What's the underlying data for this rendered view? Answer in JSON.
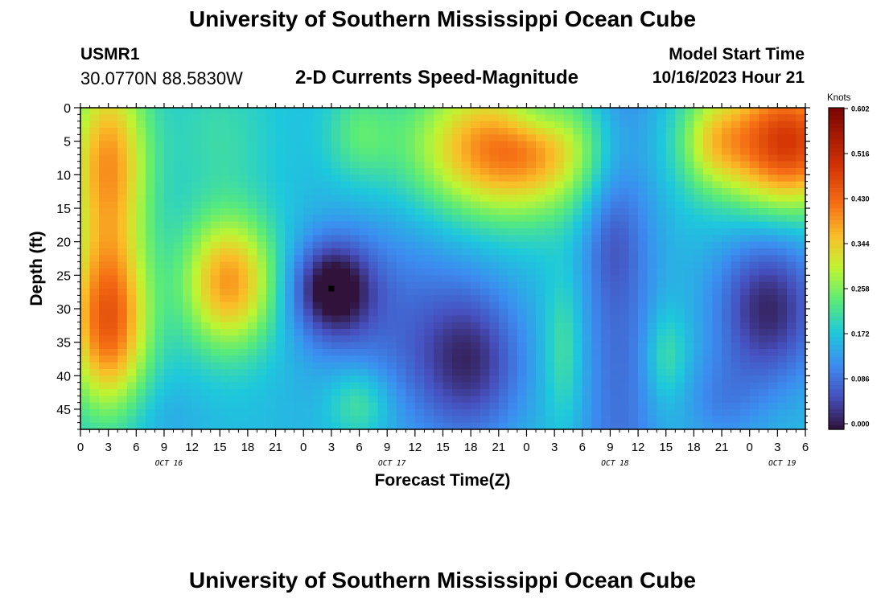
{
  "header": {
    "title": "University of Southern Mississippi Ocean Cube",
    "station_id": "USMR1",
    "station_coords": "30.0770N  88.5830W",
    "chart_title": "2-D Currents Speed-Magnitude",
    "model_label": "Model Start Time",
    "model_time": "10/16/2023 Hour 21"
  },
  "footer": {
    "title": "University of Southern Mississippi Ocean Cube"
  },
  "chart_data": {
    "type": "heatmap",
    "title": "2-D Currents Speed-Magnitude",
    "xlabel": "Forecast Time(Z)",
    "ylabel": "Depth (ft)",
    "x_tick_labels": [
      "0",
      "3",
      "6",
      "9",
      "12",
      "15",
      "18",
      "21",
      "0",
      "3",
      "6",
      "9",
      "12",
      "15",
      "18",
      "21",
      "0",
      "3",
      "6",
      "9",
      "12",
      "15",
      "18",
      "21",
      "0",
      "3",
      "6"
    ],
    "x_day_labels": [
      "OCT 16",
      "OCT 17",
      "OCT 18",
      "OCT 19"
    ],
    "x_range_hours": [
      0,
      78
    ],
    "y_range": [
      0,
      48
    ],
    "y_ticks": [
      0,
      5,
      10,
      15,
      20,
      25,
      30,
      35,
      40,
      45
    ],
    "y_inverted": true,
    "colorbar": {
      "unit": "Knots",
      "range": [
        0.0,
        0.602
      ],
      "tick_labels": [
        "0.602",
        "0.516",
        "0.430",
        "0.344",
        "0.258",
        "0.172",
        "0.086",
        "0.000"
      ]
    },
    "marker": {
      "x_hour": 27,
      "depth": 27
    },
    "field": {
      "background": 0.17,
      "features": [
        {
          "x": 3,
          "d": 32,
          "sx": 3.0,
          "sd": 9,
          "a": 0.27
        },
        {
          "x": 3,
          "d": 8,
          "sx": 3.0,
          "sd": 10,
          "a": 0.22
        },
        {
          "x": 16,
          "d": 26,
          "sx": 3.5,
          "sd": 7,
          "a": 0.22
        },
        {
          "x": 15,
          "d": 4,
          "sx": 4.0,
          "sd": 7,
          "a": 0.04
        },
        {
          "x": 27,
          "d": 27,
          "sx": 3.0,
          "sd": 5,
          "a": -0.17
        },
        {
          "x": 33,
          "d": 32,
          "sx": 6.0,
          "sd": 12,
          "a": -0.07
        },
        {
          "x": 42,
          "d": 38,
          "sx": 4.0,
          "sd": 8,
          "a": -0.13
        },
        {
          "x": 46,
          "d": 6,
          "sx": 7.0,
          "sd": 7,
          "a": 0.26
        },
        {
          "x": 30,
          "d": 4,
          "sx": 2.5,
          "sd": 5,
          "a": 0.06
        },
        {
          "x": 49,
          "d": 1,
          "sx": 3.0,
          "sd": 3,
          "a": -0.07
        },
        {
          "x": 30,
          "d": 44,
          "sx": 2.5,
          "sd": 4,
          "a": 0.08
        },
        {
          "x": 9,
          "d": 46,
          "sx": 3.0,
          "sd": 4,
          "a": -0.02
        },
        {
          "x": 52,
          "d": 36,
          "sx": 1.5,
          "sd": 8,
          "a": 0.06
        },
        {
          "x": 58,
          "d": 24,
          "sx": 3.0,
          "sd": 60,
          "a": -0.08
        },
        {
          "x": 57,
          "d": 20,
          "sx": 1.8,
          "sd": 6,
          "a": -0.03
        },
        {
          "x": 63,
          "d": 37,
          "sx": 1.6,
          "sd": 5,
          "a": 0.06
        },
        {
          "x": 76,
          "d": 5,
          "sx": 5.0,
          "sd": 7,
          "a": 0.32
        },
        {
          "x": 68,
          "d": 5,
          "sx": 2.5,
          "sd": 5,
          "a": 0.1
        },
        {
          "x": 74,
          "d": 30,
          "sx": 4.0,
          "sd": 8,
          "a": -0.15
        },
        {
          "x": 69,
          "d": 44,
          "sx": 3.0,
          "sd": 5,
          "a": -0.05
        }
      ]
    }
  }
}
